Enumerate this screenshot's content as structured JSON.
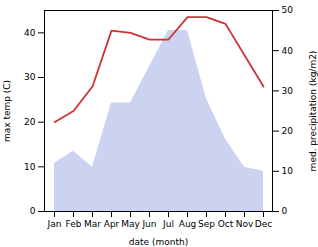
{
  "chart_data": {
    "type": "line",
    "categories": [
      "Jan",
      "Feb",
      "Mar",
      "Apr",
      "May",
      "Jun",
      "Jul",
      "Aug",
      "Sep",
      "Oct",
      "Nov",
      "Dec"
    ],
    "series": [
      {
        "type": "area",
        "axis": "y2",
        "color": "#b0bce8",
        "values": [
          12,
          15,
          11,
          27,
          27,
          36,
          45,
          45,
          28,
          18,
          11,
          10
        ]
      },
      {
        "type": "line",
        "color": "#cc3333",
        "values": [
          20.0,
          22.5,
          28.0,
          40.5,
          40.0,
          38.5,
          38.5,
          43.5,
          43.5,
          42.0,
          35.0,
          28.0
        ]
      }
    ],
    "xlabel": "date (month)",
    "ylabel": "max temp (C)",
    "y2label": "med. precipitation (kg/m2)",
    "ylim": [
      0,
      45
    ],
    "yticks": [
      0,
      10,
      20,
      30,
      40
    ],
    "y2lim": [
      0,
      50
    ],
    "y2ticks": [
      0,
      10,
      20,
      30,
      40,
      50
    ],
    "grid": false
  }
}
